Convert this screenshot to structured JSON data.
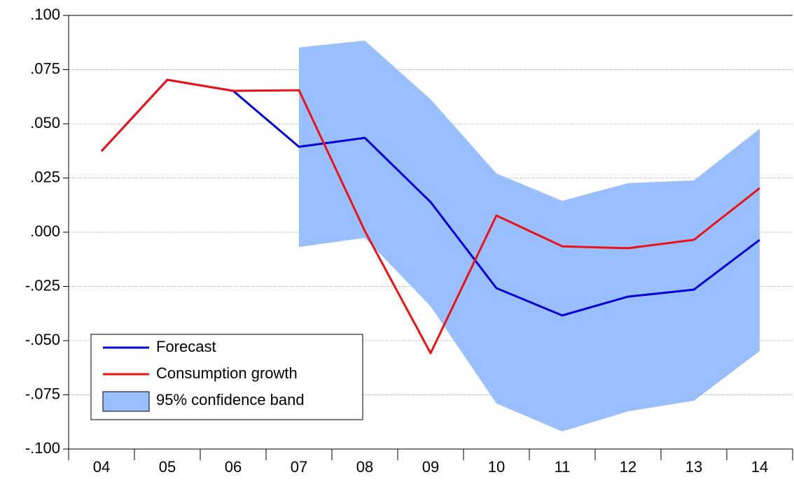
{
  "chart_data": {
    "type": "line",
    "categories": [
      "04",
      "05",
      "06",
      "07",
      "08",
      "09",
      "10",
      "11",
      "12",
      "13",
      "14"
    ],
    "series": [
      {
        "name": "Forecast",
        "color": "#0000dd",
        "values": [
          0.0374,
          0.0703,
          0.0652,
          0.0394,
          0.0435,
          0.0139,
          -0.0258,
          -0.0384,
          -0.0297,
          -0.0265,
          -0.0035
        ]
      },
      {
        "name": "Consumption growth",
        "color": "#ee1111",
        "values": [
          0.0374,
          0.0703,
          0.0652,
          0.0655,
          0.0006,
          -0.0558,
          0.0077,
          -0.0065,
          -0.0074,
          -0.0035,
          0.0203
        ]
      }
    ],
    "band": {
      "name": "95% confidence band",
      "color": "#99bfff",
      "upper": [
        null,
        null,
        null,
        0.0852,
        0.0884,
        0.0613,
        0.0271,
        0.0145,
        0.0226,
        0.0239,
        0.0477
      ],
      "lower": [
        null,
        null,
        null,
        -0.0068,
        -0.0026,
        -0.0342,
        -0.079,
        -0.0919,
        -0.0826,
        -0.0777,
        -0.0548
      ]
    },
    "ylim": [
      -0.1,
      0.1
    ],
    "yticks": [
      {
        "value": -0.1,
        "label": "-.100"
      },
      {
        "value": -0.075,
        "label": "-.075"
      },
      {
        "value": -0.05,
        "label": "-.050"
      },
      {
        "value": -0.025,
        "label": "-.025"
      },
      {
        "value": 0,
        "label": ".000"
      },
      {
        "value": 0.025,
        "label": ".025"
      },
      {
        "value": 0.05,
        "label": ".050"
      },
      {
        "value": 0.075,
        "label": ".075"
      },
      {
        "value": 0.1,
        "label": ".100"
      }
    ],
    "grid": true,
    "legend": "lower-left"
  }
}
